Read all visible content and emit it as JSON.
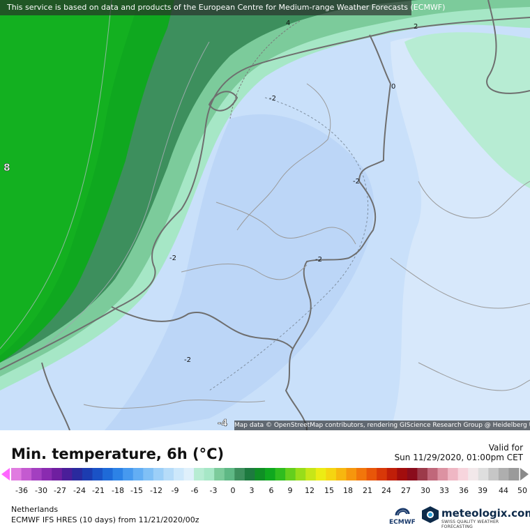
{
  "map": {
    "source_notice": "This service is based on data and products of the European Centre for Medium-range Weather Forecasts (ECMWF)",
    "attribution": "Map data © OpenStreetMap contributors, rendering GIScience Research Group @ Heidelberg University",
    "contour_labels": [
      "4",
      "2",
      "0",
      "-2",
      "-2",
      "-2",
      "-2",
      "-2",
      "8",
      "-4"
    ]
  },
  "header": {
    "title": "Min. temperature, 6h (°C)",
    "valid_label": "Valid for",
    "valid_time": "Sun 11/29/2020, 01:00pm CET"
  },
  "scale": {
    "ticks": [
      "-36",
      "-30",
      "-27",
      "-24",
      "-21",
      "-18",
      "-15",
      "-12",
      "-9",
      "-6",
      "-3",
      "0",
      "3",
      "6",
      "9",
      "12",
      "15",
      "18",
      "21",
      "24",
      "27",
      "30",
      "33",
      "36",
      "39",
      "44",
      "50"
    ]
  },
  "footer": {
    "region": "Netherlands",
    "model_line": "ECMWF IFS HRES (10 days) from 11/21/2020/00z",
    "ecmwf_logo_text": "ECMWF",
    "brand_name": "meteologix.com",
    "brand_tagline": "SWISS QUALITY WEATHER FORECASTING"
  },
  "colors": {
    "sea_warm": "#0fa81f",
    "sea_mid": "#3d8f5d",
    "sea_cool": "#7ccb9b",
    "coast": "#a6e7c6",
    "land_light": "#cfe3fb",
    "land_mid": "#bcd6f7",
    "border": "#6e6e6e"
  }
}
